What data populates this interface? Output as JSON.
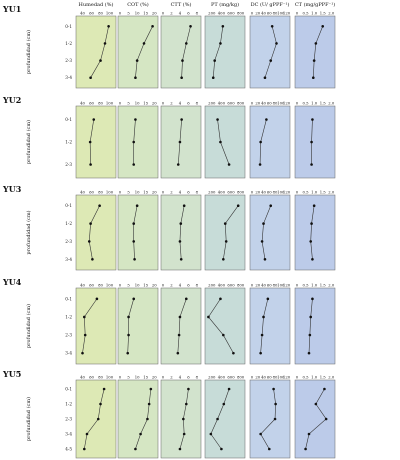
{
  "figure": {
    "headers": [
      "Humedad (%)",
      "COT (%)",
      "CTT (%)",
      "PT (mg/kg)",
      "DC (U/ gPPF⁻¹)",
      "CT (mg/gPPF⁻¹)"
    ],
    "y_axis_label": "profundidad (cm)",
    "panel_colors": [
      "#dde9b5",
      "#d5e6c3",
      "#d2e3cd",
      "#c7dcd8",
      "#c2d2ea",
      "#bccbe9"
    ],
    "line_color": "#333333",
    "marker_color": "#111111"
  },
  "chart_data": [
    {
      "type": "line",
      "title": "YU1",
      "depth_labels": [
        "0-1",
        "1-2",
        "2-3",
        "3-4"
      ],
      "columns": [
        {
          "name": "Humedad (%)",
          "ticks": [
            "40",
            "60",
            "80",
            "100"
          ],
          "xlim": [
            30,
            110
          ],
          "values": [
            98,
            90,
            80,
            58
          ]
        },
        {
          "name": "COT (%)",
          "ticks": [
            "0",
            "5",
            "10",
            "15",
            "20"
          ],
          "xlim": [
            0,
            21
          ],
          "values": [
            19,
            14,
            10,
            9
          ]
        },
        {
          "name": "CTT (%)",
          "ticks": [
            "0",
            "2",
            "4",
            "6",
            "8"
          ],
          "xlim": [
            0,
            8.5
          ],
          "values": [
            6.5,
            5.5,
            4.6,
            4.4
          ]
        },
        {
          "name": "PT (mg/kg)",
          "ticks": [
            "200",
            "400",
            "600",
            "800"
          ],
          "xlim": [
            100,
            850
          ],
          "values": [
            430,
            380,
            260,
            230
          ]
        },
        {
          "name": "DC (U/ gPPF⁻¹)",
          "ticks": [
            "0",
            "20",
            "40",
            "60",
            "80",
            "100",
            "120"
          ],
          "xlim": [
            0,
            125
          ],
          "values": [
            70,
            85,
            65,
            45
          ]
        },
        {
          "name": "CT (mg/gPPF⁻¹)",
          "ticks": [
            "0",
            "0.5",
            "1.0",
            "1.5",
            "2.0"
          ],
          "xlim": [
            0,
            2.1
          ],
          "values": [
            1.5,
            1.1,
            1.0,
            0.95
          ]
        }
      ]
    },
    {
      "type": "line",
      "title": "YU2",
      "depth_labels": [
        "0-1",
        "1-2",
        "2-3"
      ],
      "columns": [
        {
          "name": "Humedad (%)",
          "ticks": [
            "40",
            "60",
            "80",
            "100"
          ],
          "xlim": [
            30,
            110
          ],
          "values": [
            65,
            57,
            58
          ]
        },
        {
          "name": "COT (%)",
          "ticks": [
            "0",
            "5",
            "10",
            "15",
            "20"
          ],
          "xlim": [
            0,
            21
          ],
          "values": [
            9,
            8,
            8
          ]
        },
        {
          "name": "CTT (%)",
          "ticks": [
            "0",
            "2",
            "4",
            "6",
            "8"
          ],
          "xlim": [
            0,
            8.5
          ],
          "values": [
            4.4,
            4.0,
            3.6
          ]
        },
        {
          "name": "PT (mg/kg)",
          "ticks": [
            "200",
            "400",
            "600",
            "800"
          ],
          "xlim": [
            100,
            850
          ],
          "values": [
            320,
            380,
            560
          ]
        },
        {
          "name": "DC (U/ gPPF⁻¹)",
          "ticks": [
            "0",
            "20",
            "40",
            "60",
            "80",
            "100",
            "120"
          ],
          "xlim": [
            0,
            125
          ],
          "values": [
            50,
            30,
            28
          ]
        },
        {
          "name": "CT (mg/gPPF⁻¹)",
          "ticks": [
            "0",
            "0.5",
            "1.0",
            "1.5",
            "2.0"
          ],
          "xlim": [
            0,
            2.1
          ],
          "values": [
            0.9,
            0.85,
            0.85
          ]
        }
      ]
    },
    {
      "type": "line",
      "title": "YU3",
      "depth_labels": [
        "0-1",
        "1-2",
        "2-3",
        "3-4"
      ],
      "columns": [
        {
          "name": "Humedad (%)",
          "ticks": [
            "40",
            "60",
            "80",
            "100"
          ],
          "xlim": [
            30,
            110
          ],
          "values": [
            78,
            58,
            55,
            62
          ]
        },
        {
          "name": "COT (%)",
          "ticks": [
            "0",
            "5",
            "10",
            "15",
            "20"
          ],
          "xlim": [
            0,
            21
          ],
          "values": [
            10,
            8,
            8,
            8.5
          ]
        },
        {
          "name": "CTT (%)",
          "ticks": [
            "0",
            "2",
            "4",
            "6",
            "8"
          ],
          "xlim": [
            0,
            8.5
          ],
          "values": [
            5,
            4.2,
            4,
            4.3
          ]
        },
        {
          "name": "PT (mg/kg)",
          "ticks": [
            "200",
            "400",
            "600",
            "800"
          ],
          "xlim": [
            100,
            850
          ],
          "values": [
            750,
            480,
            500,
            440
          ]
        },
        {
          "name": "DC (U/ gPPF⁻¹)",
          "ticks": [
            "0",
            "20",
            "40",
            "60",
            "80",
            "100",
            "120"
          ],
          "xlim": [
            0,
            125
          ],
          "values": [
            65,
            40,
            35,
            45
          ]
        },
        {
          "name": "CT (mg/gPPF⁻¹)",
          "ticks": [
            "0",
            "0.5",
            "1.0",
            "1.5",
            "2.0"
          ],
          "xlim": [
            0,
            2.1
          ],
          "values": [
            1.0,
            0.85,
            0.8,
            0.9
          ]
        }
      ]
    },
    {
      "type": "line",
      "title": "YU4",
      "depth_labels": [
        "0-1",
        "1-2",
        "2-3",
        "3-4"
      ],
      "columns": [
        {
          "name": "Humedad (%)",
          "ticks": [
            "40",
            "60",
            "80",
            "100"
          ],
          "xlim": [
            30,
            110
          ],
          "values": [
            72,
            44,
            46,
            40
          ]
        },
        {
          "name": "COT (%)",
          "ticks": [
            "0",
            "5",
            "10",
            "15",
            "20"
          ],
          "xlim": [
            0,
            21
          ],
          "values": [
            8,
            5,
            5,
            4.5
          ]
        },
        {
          "name": "CTT (%)",
          "ticks": [
            "0",
            "2",
            "4",
            "6",
            "8"
          ],
          "xlim": [
            0,
            8.5
          ],
          "values": [
            5.5,
            4,
            3.8,
            3.5
          ]
        },
        {
          "name": "PT (mg/kg)",
          "ticks": [
            "200",
            "400",
            "600",
            "800"
          ],
          "xlim": [
            100,
            850
          ],
          "values": [
            380,
            130,
            440,
            650
          ]
        },
        {
          "name": "DC (U/ gPPF⁻¹)",
          "ticks": [
            "0",
            "20",
            "40",
            "60",
            "80",
            "100",
            "120"
          ],
          "xlim": [
            0,
            125
          ],
          "values": [
            55,
            40,
            35,
            30
          ]
        },
        {
          "name": "CT (mg/gPPF⁻¹)",
          "ticks": [
            "0",
            "0.5",
            "1.0",
            "1.5",
            "2.0"
          ],
          "xlim": [
            0,
            2.1
          ],
          "values": [
            0.9,
            0.8,
            0.75,
            0.7
          ]
        }
      ]
    },
    {
      "type": "line",
      "title": "YU5",
      "depth_labels": [
        "0-1",
        "1-2",
        "2-3",
        "3-4",
        "4-5"
      ],
      "columns": [
        {
          "name": "Humedad (%)",
          "ticks": [
            "40",
            "60",
            "80",
            "100"
          ],
          "xlim": [
            30,
            110
          ],
          "values": [
            88,
            80,
            75,
            50,
            44
          ]
        },
        {
          "name": "COT (%)",
          "ticks": [
            "0",
            "5",
            "10",
            "15",
            "20"
          ],
          "xlim": [
            0,
            21
          ],
          "values": [
            18,
            17,
            16,
            12,
            9
          ]
        },
        {
          "name": "CTT (%)",
          "ticks": [
            "0",
            "2",
            "4",
            "6",
            "8"
          ],
          "xlim": [
            0,
            8.5
          ],
          "values": [
            6,
            5.5,
            4.8,
            5,
            4
          ]
        },
        {
          "name": "PT (mg/kg)",
          "ticks": [
            "200",
            "400",
            "600",
            "800"
          ],
          "xlim": [
            100,
            850
          ],
          "values": [
            560,
            450,
            320,
            180,
            400
          ]
        },
        {
          "name": "DC (U/ gPPF⁻¹)",
          "ticks": [
            "0",
            "20",
            "40",
            "60",
            "80",
            "100",
            "120"
          ],
          "xlim": [
            0,
            125
          ],
          "values": [
            75,
            82,
            80,
            30,
            60
          ]
        },
        {
          "name": "CT (mg/gPPF⁻¹)",
          "ticks": [
            "0",
            "0.5",
            "1.0",
            "1.5",
            "2.0"
          ],
          "xlim": [
            0,
            2.1
          ],
          "values": [
            1.6,
            1.1,
            1.7,
            0.7,
            0.5
          ]
        }
      ]
    }
  ]
}
